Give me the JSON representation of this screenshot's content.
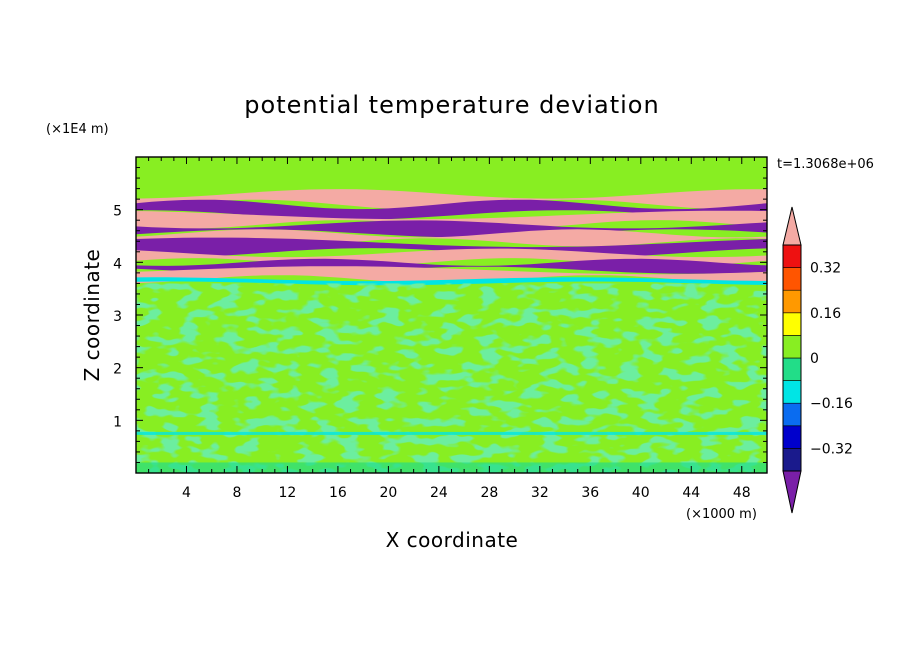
{
  "chart_data": {
    "type": "heatmap",
    "title": "potential temperature deviation",
    "xlabel": "X coordinate",
    "ylabel": "Z coordinate",
    "x_unit": "(×1000 m)",
    "y_unit": "(×1E4 m)",
    "time_label": "t=1.3068e+06",
    "xlim": [
      0,
      50
    ],
    "ylim": [
      0,
      6
    ],
    "x_ticks": [
      4,
      8,
      12,
      16,
      20,
      24,
      28,
      32,
      36,
      40,
      44,
      48
    ],
    "x_tick_labels": [
      "4",
      "8",
      "12",
      "16",
      "20",
      "24",
      "28",
      "32",
      "36",
      "40",
      "44",
      "48"
    ],
    "y_ticks": [
      1,
      2,
      3,
      4,
      5
    ],
    "y_tick_labels": [
      "1",
      "2",
      "3",
      "4",
      "5"
    ],
    "colorbar": {
      "levels": [
        -0.4,
        -0.32,
        -0.24,
        -0.16,
        -0.08,
        0,
        0.08,
        0.16,
        0.24,
        0.32,
        0.4
      ],
      "colors": [
        "#1a1a8c",
        "#0000cc",
        "#0a6cf0",
        "#00e5e5",
        "#22dd88",
        "#88ee22",
        "#ffff00",
        "#ff9900",
        "#ff5500",
        "#ee1111"
      ],
      "under_color": "#7a1fa8",
      "over_color": "#f4aaa4",
      "tick_values": [
        0.32,
        0.16,
        0,
        -0.16,
        -0.32
      ],
      "tick_labels": [
        "0.32",
        "0.16",
        "0",
        "−0.16",
        "−0.32"
      ]
    },
    "bands": [
      {
        "z": [
          5.3,
          5.55
        ],
        "value": 0.02
      },
      {
        "z": [
          5.1,
          5.3
        ],
        "value": 0.45
      },
      {
        "z": [
          4.9,
          5.1
        ],
        "value": -0.45
      },
      {
        "z": [
          4.72,
          4.9
        ],
        "value": 0.45
      },
      {
        "z": [
          4.55,
          4.72
        ],
        "value": -0.45
      },
      {
        "z": [
          4.38,
          4.55
        ],
        "value": 0.45
      },
      {
        "z": [
          4.18,
          4.38
        ],
        "value": -0.45
      },
      {
        "z": [
          4.0,
          4.18
        ],
        "value": 0.45
      },
      {
        "z": [
          3.85,
          4.0
        ],
        "value": -0.45
      },
      {
        "z": [
          3.68,
          3.85
        ],
        "value": 0.45
      },
      {
        "z": [
          3.6,
          3.68
        ],
        "value": -0.12
      }
    ]
  }
}
